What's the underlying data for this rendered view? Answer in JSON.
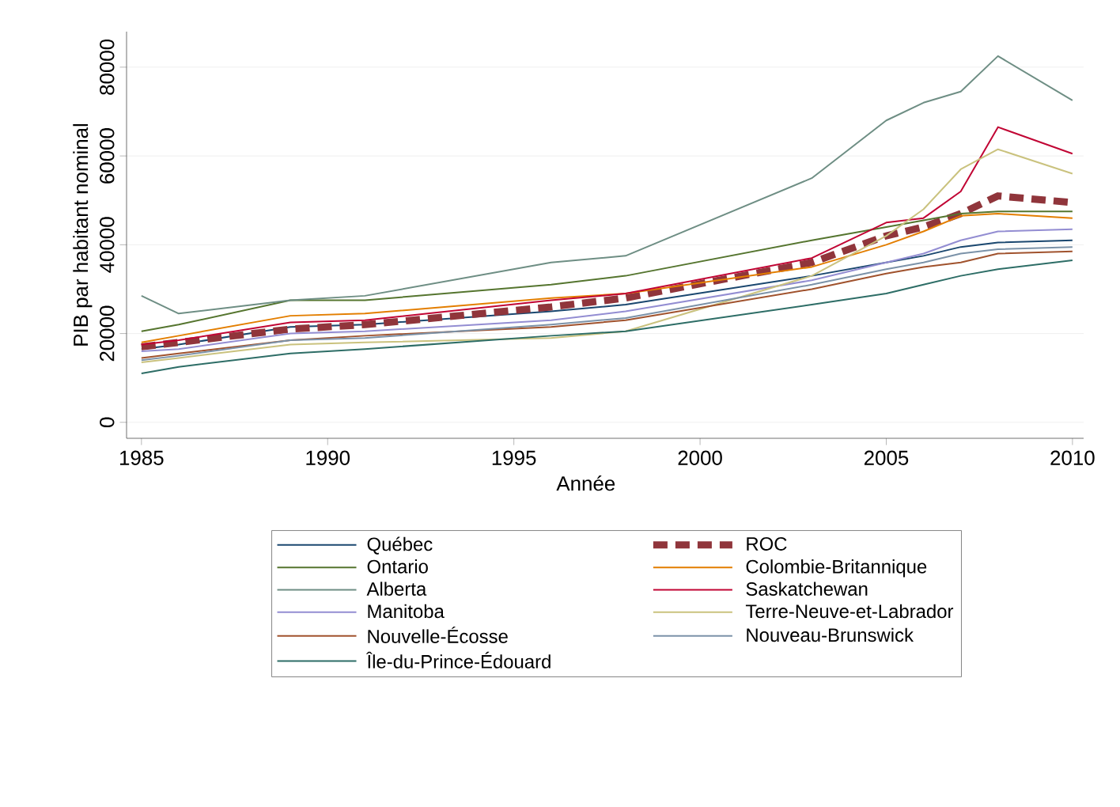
{
  "chart_data": {
    "type": "line",
    "xlabel": "Année",
    "ylabel": "PIB par habitant nominal",
    "x": [
      1985,
      1986,
      1989,
      1991,
      1996,
      1998,
      2003,
      2005,
      2006,
      2007,
      2008,
      2010
    ],
    "xlim": [
      1984.6,
      2010.3
    ],
    "xticks": [
      1985,
      1990,
      1995,
      2000,
      2005,
      2010
    ],
    "ylim": [
      -3600,
      88000
    ],
    "yticks": [
      0,
      20000,
      40000,
      60000,
      80000
    ],
    "grid": "y",
    "legend": "bottom",
    "marker": "none",
    "series": [
      {
        "name": "Québec",
        "color": "#1a476f",
        "values": [
          16500,
          17500,
          21500,
          22000,
          25000,
          26500,
          33000,
          36000,
          37500,
          39500,
          40500,
          41000
        ]
      },
      {
        "name": "ROC",
        "color": "#90353b",
        "line_style": "dashed",
        "values": [
          17000,
          18000,
          21000,
          22000,
          26000,
          28000,
          36000,
          42000,
          44000,
          47000,
          51000,
          49500
        ]
      },
      {
        "name": "Ontario",
        "color": "#55752f",
        "values": [
          20500,
          22000,
          27500,
          27500,
          31000,
          33000,
          41000,
          44000,
          45500,
          47000,
          47500,
          47500
        ]
      },
      {
        "name": "Colombie-Britannique",
        "color": "#e37e00",
        "values": [
          18000,
          19500,
          24000,
          24500,
          28000,
          29000,
          35000,
          40000,
          43000,
          46500,
          47000,
          46000
        ]
      },
      {
        "name": "Alberta",
        "color": "#6e8e84",
        "values": [
          28500,
          24500,
          27500,
          28500,
          36000,
          37500,
          55000,
          68000,
          72000,
          74500,
          82500,
          72500
        ]
      },
      {
        "name": "Saskatchewan",
        "color": "#c10534",
        "values": [
          17500,
          18500,
          22500,
          23000,
          27500,
          29000,
          37000,
          45000,
          46000,
          52000,
          66500,
          60500
        ]
      },
      {
        "name": "Manitoba",
        "color": "#938dd2",
        "values": [
          16000,
          16500,
          20000,
          20500,
          23000,
          25000,
          32000,
          36000,
          38000,
          41000,
          43000,
          43500
        ]
      },
      {
        "name": "Terre-Neuve-et-Labrador",
        "color": "#cac27e",
        "values": [
          13500,
          14500,
          17500,
          18000,
          19000,
          20500,
          33000,
          42000,
          48000,
          57000,
          61500,
          56000
        ]
      },
      {
        "name": "Nouvelle-Écosse",
        "color": "#a0522d",
        "values": [
          14500,
          15500,
          18500,
          19500,
          21500,
          23000,
          30000,
          33500,
          35000,
          36000,
          38000,
          38500
        ]
      },
      {
        "name": "Nouveau-Brunswick",
        "color": "#7b92a8",
        "values": [
          14000,
          15000,
          18500,
          19000,
          22000,
          23500,
          31000,
          34500,
          36000,
          38000,
          39000,
          39500
        ]
      },
      {
        "name": "Île-du-Prince-Édouard",
        "color": "#2d6d66",
        "values": [
          11000,
          12500,
          15500,
          16500,
          19500,
          20500,
          26500,
          29000,
          31000,
          33000,
          34500,
          36500
        ]
      }
    ]
  }
}
